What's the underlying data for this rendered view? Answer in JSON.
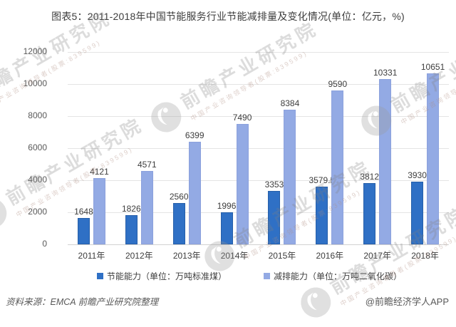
{
  "title": "图表5：2011-2018年中国节能服务行业节能减排量及变化情况(单位：亿元，%)",
  "watermark": {
    "big": "前瞻产业研究院",
    "small": "中国产业咨询领导者(股票:839599)"
  },
  "footer": {
    "source": "资料来源：EMCA 前瞻产业研究院整理",
    "credit": "@前瞻经济学人APP"
  },
  "colors": {
    "series1": "#2f70c5",
    "series2": "#93aae4",
    "grid": "#e4e4e4",
    "axis": "#d2d2d2",
    "text_dark": "#3d3d3d",
    "text_gray": "#595959"
  },
  "chart_data": {
    "type": "bar",
    "title": "图表5：2011-2018年中国节能服务行业节能减排量及变化情况(单位：亿元，%)",
    "categories": [
      "2011年",
      "2012年",
      "2013年",
      "2014年",
      "2015年",
      "2016年",
      "2017年",
      "2018年"
    ],
    "series": [
      {
        "name": "节能能力（单位：万吨标准煤）",
        "color": "#2f70c5",
        "values": [
          1648,
          1826,
          2560,
          1996,
          3353,
          3579.5,
          3812,
          3930
        ]
      },
      {
        "name": "减排能力（单位：万吨二氧化碳）",
        "color": "#93aae4",
        "values": [
          4121,
          4571,
          6399,
          7490,
          8384,
          9590,
          10331,
          10651
        ]
      }
    ],
    "ylim": [
      0,
      12000
    ],
    "ytick_step": 2000,
    "yticks": [
      0,
      2000,
      4000,
      6000,
      8000,
      10000,
      12000
    ],
    "grid": true,
    "data_labels": true,
    "legend_position": "bottom"
  }
}
